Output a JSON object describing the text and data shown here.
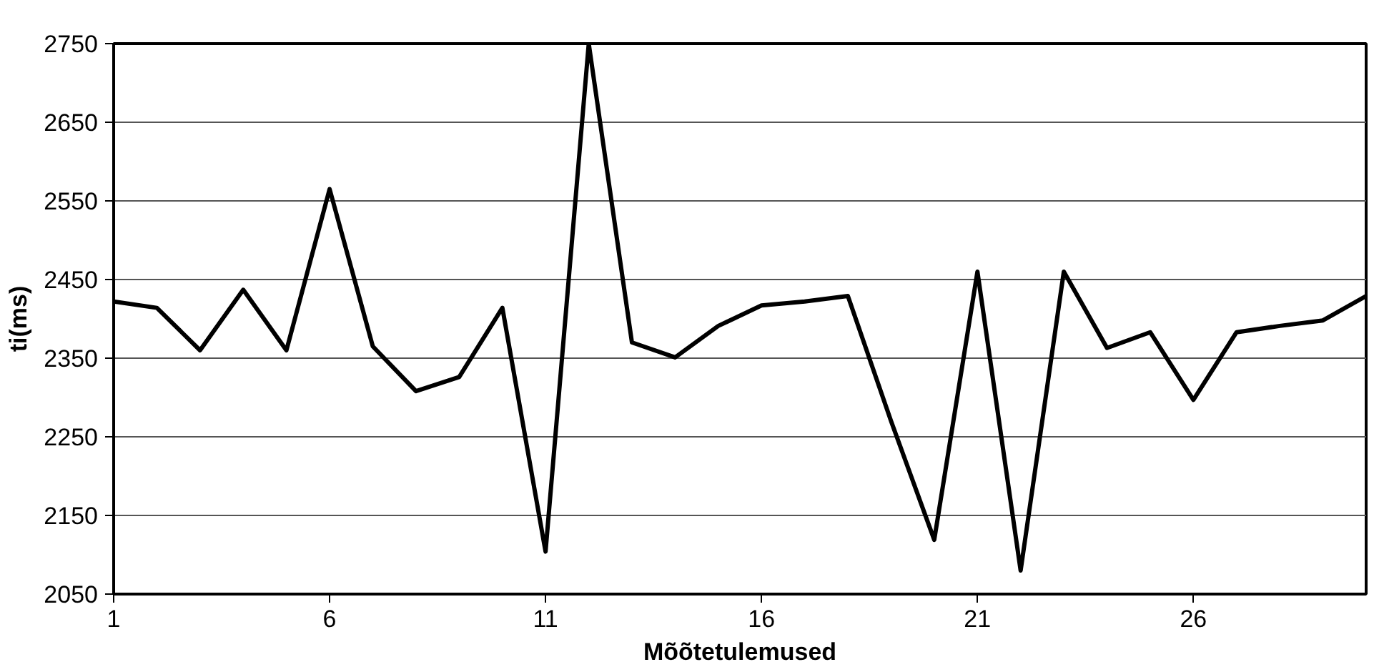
{
  "chart_data": {
    "type": "line",
    "xlabel": "Mõõtetulemused",
    "ylabel": "ti(ms)",
    "x": [
      1,
      2,
      3,
      4,
      5,
      6,
      7,
      8,
      9,
      10,
      11,
      12,
      13,
      14,
      15,
      16,
      17,
      18,
      19,
      20,
      21,
      22,
      23,
      24,
      25,
      26,
      27,
      28,
      29,
      30
    ],
    "series": [
      {
        "color": "#000000",
        "values": [
          2422,
          2414,
          2360,
          2437,
          2360,
          2565,
          2365,
          2308,
          2326,
          2414,
          2104,
          2750,
          2370,
          2351,
          2391,
          2417,
          2422,
          2429,
          2270,
          2119,
          2460,
          2080,
          2460,
          2363,
          2383,
          2297,
          2383,
          2391,
          2398,
          2429
        ]
      }
    ],
    "xlim": [
      1,
      30
    ],
    "xticks": [
      1,
      6,
      11,
      16,
      21,
      26
    ],
    "ylim": [
      2050,
      2750
    ],
    "yticks": [
      2050,
      2150,
      2250,
      2350,
      2450,
      2550,
      2650,
      2750
    ],
    "grid": "y",
    "marker": "none",
    "line_style": "solid"
  }
}
